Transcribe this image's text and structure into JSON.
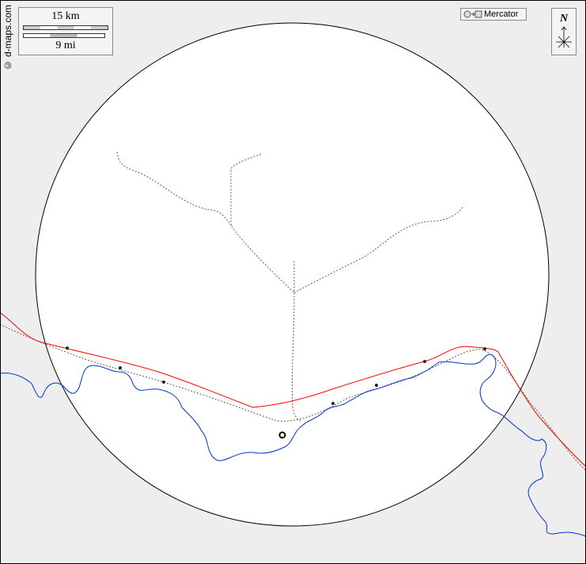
{
  "credit": "© d-maps.com",
  "scale": {
    "km_label": "15 km",
    "mi_label": "9 mi"
  },
  "projection": {
    "label": "Mercator",
    "icon": "circle-to-square-icon"
  },
  "north": {
    "label": "N",
    "icon": "compass-arrow-icon"
  },
  "colors": {
    "background": "#eeeeee",
    "land": "#ffffff",
    "river": "#0033cc",
    "road": "#ff0000",
    "track": "#6b5a4a",
    "border": "#000000"
  }
}
